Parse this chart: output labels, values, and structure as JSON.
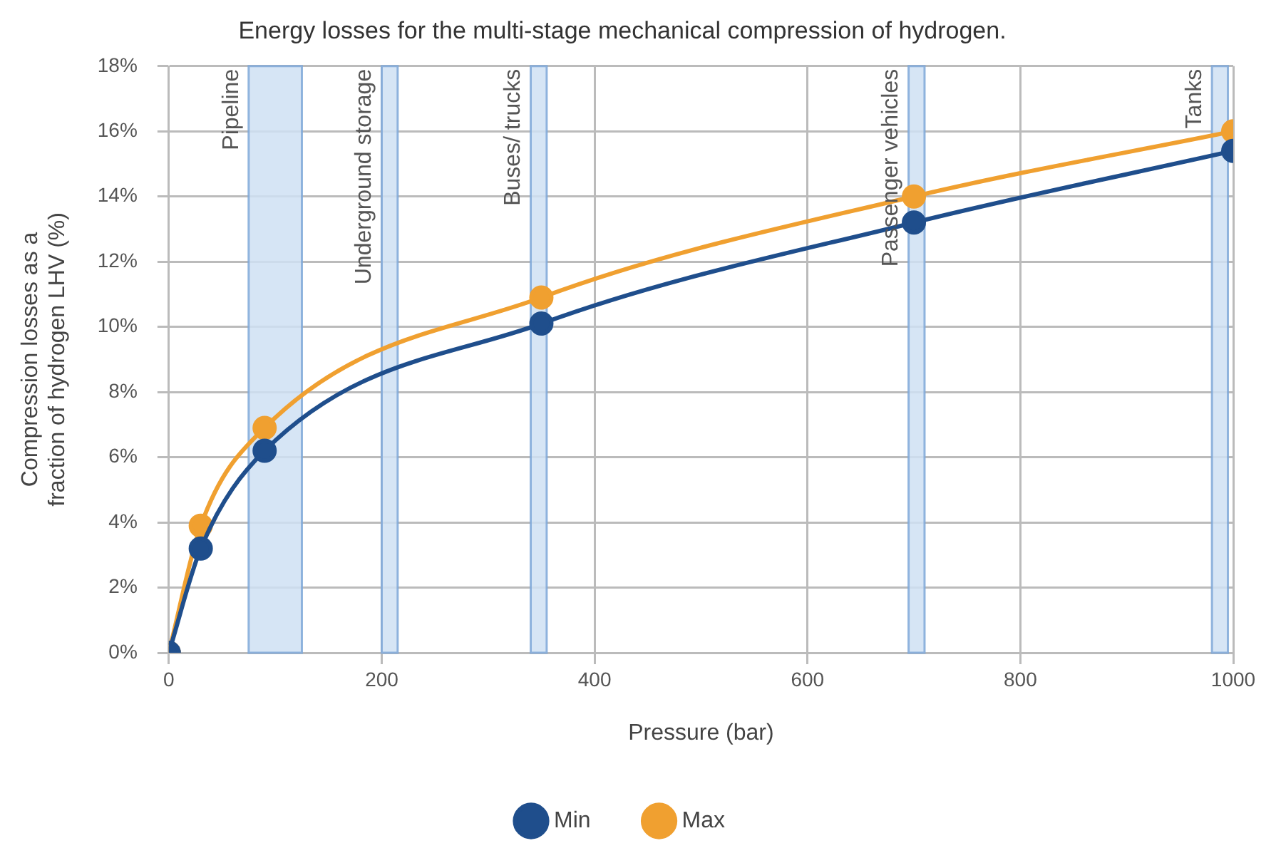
{
  "chart_data": {
    "type": "line",
    "title": "Energy losses for the multi-stage mechanical compression of hydrogen.",
    "xlabel": "Pressure (bar)",
    "ylabel": "Compression losses as a fraction of hydrogen LHV (%)",
    "x": [
      0,
      30,
      90,
      350,
      700,
      1000
    ],
    "series": [
      {
        "name": "Min",
        "color": "#1f4e8c",
        "values": [
          0,
          3.2,
          6.2,
          10.1,
          13.2,
          15.4
        ]
      },
      {
        "name": "Max",
        "color": "#f0a030",
        "values": [
          0,
          3.9,
          6.9,
          10.9,
          14.0,
          16.0
        ]
      }
    ],
    "xlim": [
      0,
      1000
    ],
    "xticks": [
      0,
      200,
      400,
      600,
      800,
      1000
    ],
    "ylim": [
      0,
      18
    ],
    "yticks": [
      {
        "value": 0,
        "label": "0%"
      },
      {
        "value": 2,
        "label": "2%"
      },
      {
        "value": 4,
        "label": "4%"
      },
      {
        "value": 6,
        "label": "6%"
      },
      {
        "value": 8,
        "label": "8%"
      },
      {
        "value": 10,
        "label": "10%"
      },
      {
        "value": 12,
        "label": "12%"
      },
      {
        "value": 14,
        "label": "14%"
      },
      {
        "value": 16,
        "label": "16%"
      },
      {
        "value": 18,
        "label": "18%"
      }
    ],
    "bands": [
      {
        "axis": "x",
        "from": 75,
        "to": 125,
        "label": "Pipeline",
        "color": "#cfe0f3"
      },
      {
        "axis": "x",
        "from": 200,
        "to": 215,
        "label": "Underground storage",
        "color": "#cfe0f3"
      },
      {
        "axis": "x",
        "from": 340,
        "to": 355,
        "label": "Buses/ trucks",
        "color": "#cfe0f3"
      },
      {
        "axis": "x",
        "from": 695,
        "to": 710,
        "label": "Passenger vehicles",
        "color": "#cfe0f3"
      },
      {
        "axis": "x",
        "from": 980,
        "to": 995,
        "label": "Tanks",
        "color": "#cfe0f3"
      }
    ],
    "grid": true,
    "legend": "bottom",
    "marker": "circle",
    "line_style": "solid"
  }
}
